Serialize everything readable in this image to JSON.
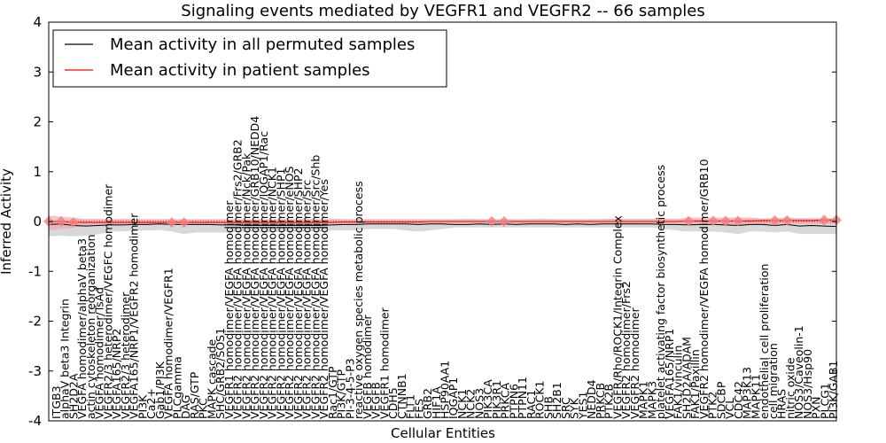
{
  "chart_data": {
    "type": "line",
    "title": "Signaling events mediated by VEGFR1 and VEGFR2 -- 66 samples",
    "xlabel": "Cellular Entities",
    "ylabel": "Inferred Activity",
    "ylim": [
      -4,
      4
    ],
    "yticks": [
      -4,
      -3,
      -2,
      -1,
      0,
      1,
      2,
      3,
      4
    ],
    "grid": false,
    "legend_position": "top-left",
    "series": [
      {
        "name": "Mean activity in all permuted samples",
        "color": "#000000",
        "band_color": "#c8c8c8"
      },
      {
        "name": "Mean activity in patient samples",
        "color": "#ff0000",
        "band_color": "#f4a0a0"
      }
    ],
    "categories": [
      "ITGB3",
      "alphaV beta3 Integrin",
      "SH2D2A",
      "VEGFA homodimer/alphaV beta3",
      "actin cytoskeleton reorganization",
      "VEGFA homodimer/TsAd",
      "VEGFR2/3 heterodimer/VEGFC homodimer",
      "VEGFA165/NRP2",
      "VEGFR2/3 heterodimer",
      "VEGFA165/NRP1/VEGFR2 homodimer",
      "PI3K",
      "Ca2+",
      "Gab1/PI3K",
      "VEGFA homodimer/VEGFR1",
      "PLCgamma",
      "DAG",
      "RAS/GTP",
      "PKC",
      "MAPK cascade",
      "SHC/GRB2/SOS1",
      "VEGFR1 homodimer/VEGFA homodimer",
      "VEGFR2 homodimer/VEGFA homodimer/Frs2/GRB2",
      "VEGFR2 homodimer/VEGFA homodimer/Nck/Pak",
      "VEGFR2 homodimer/VEGFA homodimer/GRB10/NEDD4",
      "VEGFR2 homodimer/VEGFA homodimer/IQGAP1/Rac",
      "VEGFR2 homodimer/VEGFA homodimer/NCK1",
      "VEGFR2 homodimer/VEGFA homodimer/SHP1",
      "VEGFR2 homodimer/VEGFA homodimer/eNOS",
      "VEGFR2 homodimer/VEGFA homodimer/SHP2",
      "VEGFR2 homodimer/VEGFA homodimer/Src",
      "VEGFR2 homodimer/VEGFA homodimer/Src/Shb",
      "VEGFR2 homodimer/VEGFA homodimer/Yes",
      "Rac1/GTP",
      "PI3K/GTP",
      "PI-3-4-5-P3",
      "reactive oxygen species metabolic process",
      "VEGFB homodimer",
      "VEGFB",
      "VEGFR1 homodimer",
      "CDH5",
      "CTNNB1",
      "FLT1",
      "FES",
      "GRB2",
      "HIF1A",
      "HSP90AA1",
      "IQGAP1",
      "NCK1",
      "NCK2",
      "NOS3",
      "PIK3CA",
      "PIK3R1",
      "PRKCA",
      "PTPN6",
      "PTPN11",
      "RAC1",
      "ROCK1",
      "SHB",
      "SH2B1",
      "SRC",
      "SYK",
      "YES1",
      "NEDD4",
      "PRKCB",
      "PTK2B",
      "VEGFR/Rho/ROCK1/Integrin Complex",
      "VEGFR2 homodimer/Frs2",
      "VEGFR2 homodimer",
      "MAPK1",
      "MAPK3",
      "platelet activating factor biosynthetic process",
      "VEGFA165/NRP1",
      "FAK1/vinculin",
      "SH2D2A/ADAM",
      "FAK1/Paxillin",
      "VEGFR2 homodimer/VEGFA homodimer/GRB10",
      "PTK2",
      "SDCBP",
      "VCL",
      "CDC42",
      "MAP3K13",
      "MAPK11",
      "endothelial cell proliferation",
      "cell migration",
      "HRAS",
      "nitric oxide",
      "NOS3/Caveolin-1",
      "NOS3/Hsp90",
      "PXN",
      "PLCG1",
      "PI3K/GAB1"
    ],
    "x_plotted_positions": [
      0,
      64
    ],
    "permuted_mean": [
      -0.06,
      -0.05,
      -0.08,
      -0.09,
      -0.08,
      -0.07,
      -0.07,
      -0.06,
      -0.06,
      -0.05,
      -0.06,
      -0.06,
      -0.06,
      -0.06,
      -0.07,
      -0.07,
      -0.08,
      -0.08,
      -0.08,
      -0.08,
      -0.08,
      -0.08,
      -0.08,
      -0.07,
      -0.06,
      -0.06,
      -0.05,
      -0.05,
      -0.05,
      -0.05,
      -0.06,
      -0.05,
      -0.05,
      -0.06,
      -0.06,
      -0.05,
      -0.06,
      -0.05,
      -0.06,
      -0.05,
      -0.05,
      -0.05,
      -0.06,
      -0.05,
      -0.06,
      -0.05,
      -0.05,
      -0.05,
      -0.05,
      -0.05,
      -0.06,
      -0.06,
      -0.07,
      -0.06,
      -0.06,
      -0.07,
      -0.08,
      -0.06,
      -0.06,
      -0.08,
      -0.06,
      -0.09,
      -0.08,
      -0.09,
      -0.1
    ],
    "permuted_band_upper": [
      0.02,
      0.02,
      0.05,
      0.05,
      0.05,
      0.05,
      0.06,
      0.05,
      0.05,
      0.05,
      0.05,
      0.05,
      0.05,
      0.05,
      0.05,
      0.05,
      0.05,
      0.05,
      0.05,
      0.06,
      0.05,
      0.06,
      0.05,
      0.06,
      0.05,
      0.05,
      0.05,
      0.05,
      0.05,
      0.05,
      0.05,
      0.05,
      0.05,
      0.05,
      0.06,
      0.05,
      0.05,
      0.05,
      0.05,
      0.05,
      0.06,
      0.05,
      0.05,
      0.05,
      0.05,
      0.05,
      0.05,
      0.05,
      0.05,
      0.05,
      0.06,
      0.05,
      0.05,
      0.05,
      0.05,
      0.06,
      0.06,
      0.06,
      0.06,
      0.07,
      0.06,
      0.07,
      0.07,
      0.06,
      0.07
    ],
    "permuted_band_lower": [
      -0.3,
      -0.28,
      -0.3,
      -0.28,
      -0.26,
      -0.2,
      -0.2,
      -0.18,
      -0.18,
      -0.17,
      -0.2,
      -0.25,
      -0.22,
      -0.22,
      -0.22,
      -0.22,
      -0.2,
      -0.22,
      -0.22,
      -0.2,
      -0.2,
      -0.2,
      -0.2,
      -0.18,
      -0.18,
      -0.18,
      -0.15,
      -0.15,
      -0.15,
      -0.18,
      -0.2,
      -0.18,
      -0.15,
      -0.12,
      -0.12,
      -0.12,
      -0.12,
      -0.12,
      -0.12,
      -0.12,
      -0.12,
      -0.12,
      -0.12,
      -0.12,
      -0.12,
      -0.12,
      -0.12,
      -0.12,
      -0.12,
      -0.12,
      -0.15,
      -0.18,
      -0.2,
      -0.2,
      -0.2,
      -0.22,
      -0.25,
      -0.2,
      -0.2,
      -0.22,
      -0.2,
      -0.25,
      -0.25,
      -0.25,
      -0.25
    ],
    "patient_mean": [
      0,
      0,
      -0.02,
      -0.02,
      -0.02,
      -0.02,
      -0.02,
      -0.02,
      -0.02,
      -0.02,
      -0.02,
      -0.02,
      -0.02,
      -0.02,
      -0.02,
      -0.02,
      -0.02,
      -0.02,
      -0.02,
      -0.02,
      -0.02,
      -0.02,
      -0.02,
      -0.02,
      -0.01,
      -0.01,
      -0.01,
      -0.01,
      -0.01,
      -0.01,
      -0.01,
      0,
      0,
      0,
      0,
      0,
      0,
      0,
      0,
      0,
      0,
      0,
      0,
      0,
      0,
      0,
      0,
      0,
      0,
      0,
      0,
      0,
      0.01,
      0.01,
      0.01,
      0.01,
      0.01,
      0.01,
      0.02,
      0.02,
      0.02,
      0.02,
      0.02,
      0.03,
      0.03
    ],
    "patient_band_upper": [
      0.12,
      0.1,
      0.08,
      0.05,
      0.05,
      0.04,
      0.04,
      0.04,
      0.04,
      0.04,
      0.04,
      0.04,
      0.04,
      0.04,
      0.04,
      0.04,
      0.04,
      0.04,
      0.04,
      0.04,
      0.04,
      0.04,
      0.04,
      0.04,
      0.04,
      0.04,
      0.04,
      0.04,
      0.04,
      0.04,
      0.04,
      0.04,
      0.04,
      0.04,
      0.04,
      0.04,
      0.04,
      0.04,
      0.04,
      0.04,
      0.04,
      0.04,
      0.04,
      0.04,
      0.04,
      0.05,
      0.06,
      0.05,
      0.05,
      0.05,
      0.05,
      0.05,
      0.08,
      0.08,
      0.08,
      0.08,
      0.08,
      0.08,
      0.06,
      0.06,
      0.08,
      0.06,
      0.06,
      0.06,
      0.06
    ],
    "patient_band_lower": [
      -0.18,
      -0.15,
      -0.12,
      -0.08,
      -0.06,
      -0.06,
      -0.06,
      -0.05,
      -0.05,
      -0.05,
      -0.05,
      -0.05,
      -0.05,
      -0.05,
      -0.05,
      -0.05,
      -0.05,
      -0.05,
      -0.05,
      -0.05,
      -0.05,
      -0.05,
      -0.05,
      -0.05,
      -0.05,
      -0.05,
      -0.05,
      -0.05,
      -0.05,
      -0.05,
      -0.04,
      -0.04,
      -0.04,
      -0.04,
      -0.04,
      -0.04,
      -0.04,
      -0.04,
      -0.04,
      -0.04,
      -0.04,
      -0.04,
      -0.04,
      -0.04,
      -0.04,
      -0.05,
      -0.06,
      -0.05,
      -0.04,
      -0.04,
      -0.04,
      -0.04,
      -0.06,
      -0.06,
      -0.06,
      -0.06,
      -0.06,
      -0.06,
      -0.05,
      -0.05,
      -0.05,
      -0.05,
      -0.05,
      -0.05,
      -0.04
    ],
    "patient_markers": [
      {
        "x": 0,
        "y": 0.0
      },
      {
        "x": 1,
        "y": 0.0
      },
      {
        "x": 2,
        "y": -0.02
      },
      {
        "x": 10,
        "y": -0.02
      },
      {
        "x": 11,
        "y": -0.02
      },
      {
        "x": 36,
        "y": 0.0
      },
      {
        "x": 37,
        "y": 0.0
      },
      {
        "x": 52,
        "y": 0.01
      },
      {
        "x": 54,
        "y": 0.01
      },
      {
        "x": 55,
        "y": 0.01
      },
      {
        "x": 56,
        "y": 0.01
      },
      {
        "x": 59,
        "y": 0.02
      },
      {
        "x": 60,
        "y": 0.02
      },
      {
        "x": 63,
        "y": 0.03
      },
      {
        "x": 64,
        "y": 0.03
      }
    ]
  }
}
